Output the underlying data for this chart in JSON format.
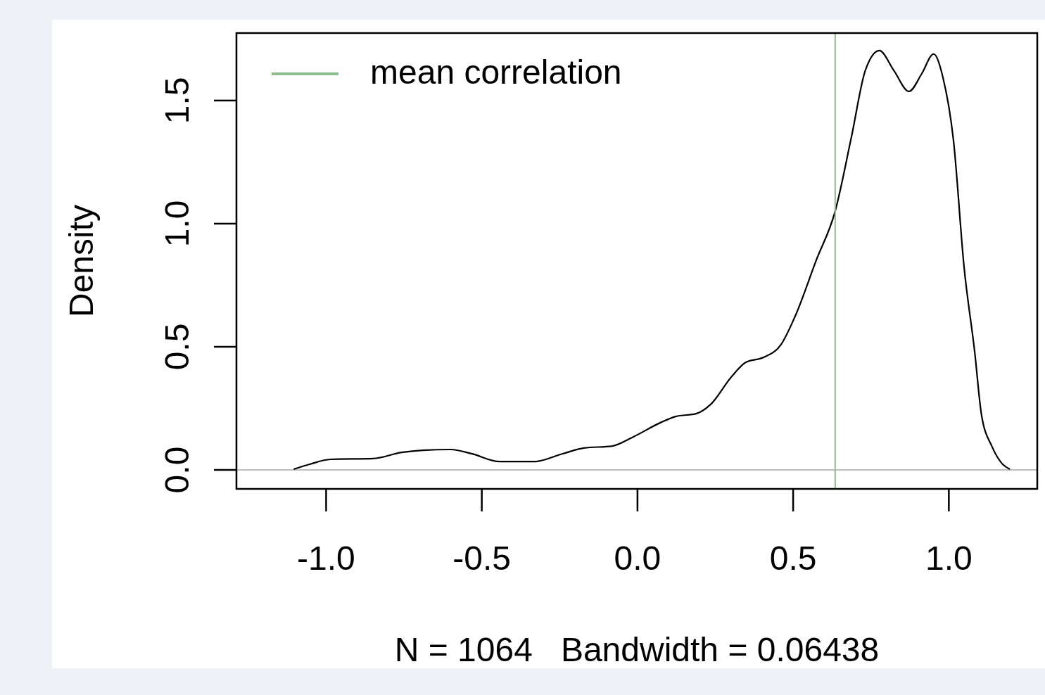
{
  "chart_data": {
    "type": "line",
    "xlabel": "N = 1064   Bandwidth = 0.06438",
    "ylabel": "Density",
    "x": [
      -1.104,
      -1.053,
      -0.986,
      -0.85,
      -0.758,
      -0.69,
      -0.6,
      -0.533,
      -0.443,
      -0.33,
      -0.24,
      -0.172,
      -0.081,
      -0.014,
      0.077,
      0.122,
      0.19,
      0.235,
      0.303,
      0.348,
      0.405,
      0.461,
      0.506,
      0.574,
      0.635,
      0.687,
      0.732,
      0.777,
      0.823,
      0.872,
      0.913,
      0.951,
      0.981,
      1.015,
      1.049,
      1.083,
      1.105,
      1.139,
      1.173,
      1.196
    ],
    "series": [
      {
        "color": "#000000",
        "values": [
          0.003,
          0.023,
          0.043,
          0.046,
          0.071,
          0.08,
          0.083,
          0.066,
          0.034,
          0.034,
          0.066,
          0.089,
          0.097,
          0.134,
          0.194,
          0.217,
          0.229,
          0.266,
          0.38,
          0.437,
          0.457,
          0.509,
          0.623,
          0.851,
          1.051,
          1.351,
          1.623,
          1.703,
          1.623,
          1.537,
          1.609,
          1.689,
          1.594,
          1.337,
          0.823,
          0.48,
          0.223,
          0.094,
          0.023,
          0.003
        ]
      },
      {
        "name": "mean correlation",
        "type": "line",
        "color": "#8fbc8f",
        "x": [
          0.635,
          0.635
        ],
        "values": [
          -0.077,
          1.774
        ]
      }
    ],
    "xlim": [
      -1.288,
      1.284
    ],
    "xticks": [
      {
        "value": -1,
        "label": "-1.0"
      },
      {
        "value": -0.5,
        "label": "-0.5"
      },
      {
        "value": 0,
        "label": "0.0"
      },
      {
        "value": 0.5,
        "label": "0.5"
      },
      {
        "value": 1,
        "label": "1.0"
      }
    ],
    "ylim": [
      -0.077,
      1.774
    ],
    "yticks": [
      {
        "value": 0,
        "label": "0.0"
      },
      {
        "value": 0.5,
        "label": "0.5"
      },
      {
        "value": 1,
        "label": "1.0"
      },
      {
        "value": 1.5,
        "label": "1.5"
      }
    ],
    "ref_lines": [
      {
        "axis": "y",
        "value": 0,
        "color": "#bebebe"
      }
    ],
    "legend": "top left",
    "grid": false,
    "marker": "none",
    "line_style": "solid"
  }
}
